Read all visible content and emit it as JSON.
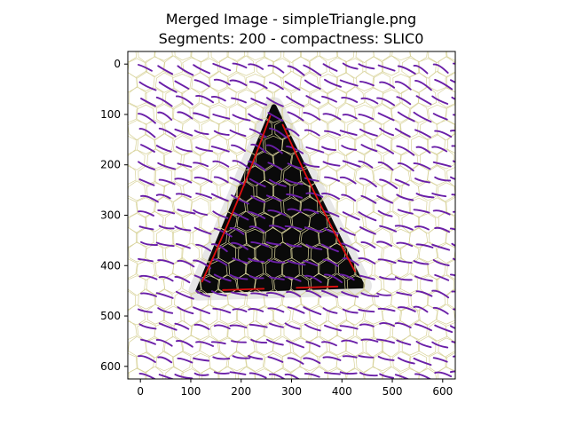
{
  "chart_data": {
    "type": "heatmap",
    "title_line1": "Merged Image - simpleTriangle.png",
    "title_line2": "Segments: 200 - compactness: SLIC0",
    "xlim": [
      -25,
      625
    ],
    "ylim": [
      625,
      -25
    ],
    "xticks": [
      0,
      100,
      200,
      300,
      400,
      500,
      600
    ],
    "yticks": [
      0,
      100,
      200,
      300,
      400,
      500,
      600
    ],
    "grid": false,
    "triangle": {
      "apex": [
        265,
        85
      ],
      "left": [
        115,
        450
      ],
      "right": [
        440,
        440
      ]
    },
    "colors": {
      "triangle": "#0a0a0a",
      "segment_edges": "#d8d39a",
      "flow_lines": "#6a1fa8",
      "contour": "#e01010",
      "halo": "#e6e6e6"
    }
  }
}
